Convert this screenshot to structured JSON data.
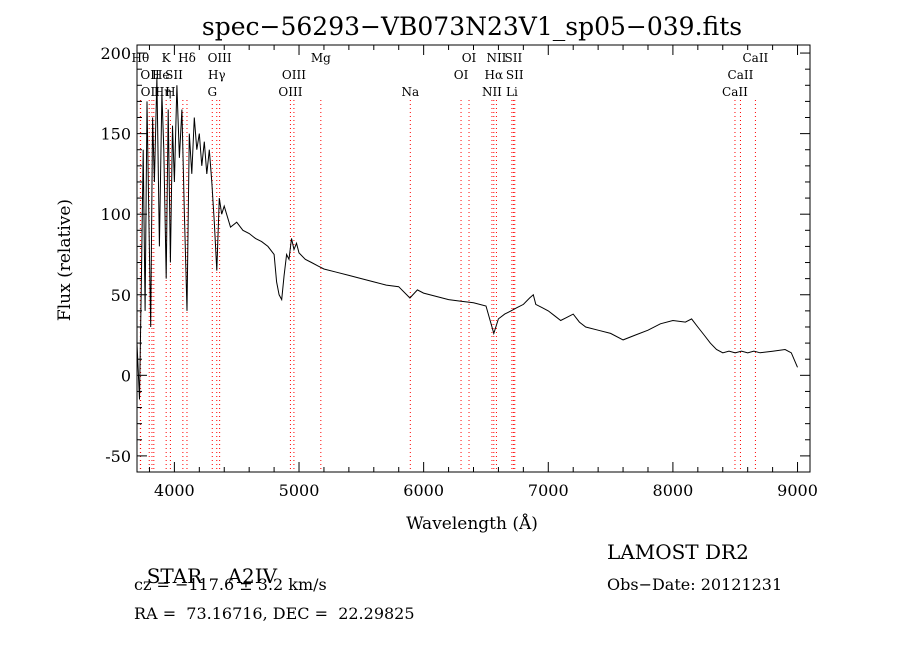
{
  "chart_data": {
    "type": "line",
    "title": "spec−56293−VB073N23V1_sp05−039.fits",
    "xlabel": "Wavelength (Å)",
    "ylabel": "Flux (relative)",
    "xlim": [
      3700,
      9100
    ],
    "ylim": [
      -60,
      205
    ],
    "xticks": [
      4000,
      5000,
      6000,
      7000,
      8000,
      9000
    ],
    "yticks": [
      -50,
      0,
      50,
      100,
      150,
      200
    ],
    "line_color": "#000000",
    "marker_color": "#ff0000",
    "grid": false,
    "series": [
      {
        "points": [
          [
            3700,
            20
          ],
          [
            3720,
            -15
          ],
          [
            3735,
            60
          ],
          [
            3750,
            140
          ],
          [
            3765,
            40
          ],
          [
            3780,
            170
          ],
          [
            3795,
            100
          ],
          [
            3810,
            30
          ],
          [
            3825,
            160
          ],
          [
            3840,
            120
          ],
          [
            3860,
            185
          ],
          [
            3880,
            80
          ],
          [
            3900,
            175
          ],
          [
            3915,
            140
          ],
          [
            3934,
            60
          ],
          [
            3950,
            165
          ],
          [
            3968,
            70
          ],
          [
            3985,
            155
          ],
          [
            4000,
            120
          ],
          [
            4020,
            180
          ],
          [
            4040,
            135
          ],
          [
            4060,
            165
          ],
          [
            4080,
            100
          ],
          [
            4101,
            40
          ],
          [
            4120,
            150
          ],
          [
            4140,
            125
          ],
          [
            4160,
            160
          ],
          [
            4180,
            140
          ],
          [
            4200,
            150
          ],
          [
            4220,
            130
          ],
          [
            4240,
            145
          ],
          [
            4260,
            125
          ],
          [
            4280,
            140
          ],
          [
            4300,
            120
          ],
          [
            4320,
            95
          ],
          [
            4340,
            65
          ],
          [
            4360,
            110
          ],
          [
            4380,
            100
          ],
          [
            4400,
            105
          ],
          [
            4450,
            92
          ],
          [
            4500,
            95
          ],
          [
            4550,
            90
          ],
          [
            4600,
            88
          ],
          [
            4650,
            85
          ],
          [
            4700,
            83
          ],
          [
            4750,
            80
          ],
          [
            4800,
            75
          ],
          [
            4820,
            58
          ],
          [
            4840,
            50
          ],
          [
            4861,
            47
          ],
          [
            4880,
            62
          ],
          [
            4900,
            75
          ],
          [
            4920,
            72
          ],
          [
            4940,
            85
          ],
          [
            4960,
            78
          ],
          [
            4980,
            82
          ],
          [
            5000,
            76
          ],
          [
            5050,
            72
          ],
          [
            5100,
            70
          ],
          [
            5150,
            68
          ],
          [
            5200,
            66
          ],
          [
            5300,
            64
          ],
          [
            5400,
            62
          ],
          [
            5500,
            60
          ],
          [
            5600,
            58
          ],
          [
            5700,
            56
          ],
          [
            5800,
            55
          ],
          [
            5890,
            48
          ],
          [
            5950,
            53
          ],
          [
            6000,
            51
          ],
          [
            6100,
            49
          ],
          [
            6200,
            47
          ],
          [
            6300,
            46
          ],
          [
            6400,
            45
          ],
          [
            6500,
            43
          ],
          [
            6563,
            26
          ],
          [
            6600,
            35
          ],
          [
            6650,
            38
          ],
          [
            6700,
            40
          ],
          [
            6750,
            42
          ],
          [
            6800,
            44
          ],
          [
            6850,
            48
          ],
          [
            6880,
            50
          ],
          [
            6900,
            44
          ],
          [
            6950,
            42
          ],
          [
            7000,
            40
          ],
          [
            7050,
            37
          ],
          [
            7100,
            34
          ],
          [
            7150,
            36
          ],
          [
            7200,
            38
          ],
          [
            7250,
            33
          ],
          [
            7300,
            30
          ],
          [
            7400,
            28
          ],
          [
            7500,
            26
          ],
          [
            7600,
            22
          ],
          [
            7700,
            25
          ],
          [
            7800,
            28
          ],
          [
            7900,
            32
          ],
          [
            8000,
            34
          ],
          [
            8100,
            33
          ],
          [
            8150,
            35
          ],
          [
            8200,
            30
          ],
          [
            8250,
            25
          ],
          [
            8300,
            20
          ],
          [
            8350,
            16
          ],
          [
            8400,
            14
          ],
          [
            8450,
            15
          ],
          [
            8500,
            14
          ],
          [
            8550,
            15
          ],
          [
            8600,
            14
          ],
          [
            8650,
            15
          ],
          [
            8700,
            14
          ],
          [
            8800,
            15
          ],
          [
            8900,
            16
          ],
          [
            8950,
            14
          ],
          [
            9000,
            5
          ]
        ]
      }
    ],
    "lines": [
      {
        "label": "Hθ",
        "x": 3798,
        "row": 0,
        "ha": "end"
      },
      {
        "label": "OII",
        "x": 3727,
        "row": 1,
        "ha": "start"
      },
      {
        "label": "OII",
        "x": 3729,
        "row": 2,
        "ha": "start"
      },
      {
        "label": "He",
        "x": 3820,
        "row": 1,
        "ha": "start"
      },
      {
        "label": "Hη",
        "x": 3835,
        "row": 2,
        "ha": "start"
      },
      {
        "label": "K",
        "x": 3934,
        "row": 0,
        "ha": "middle"
      },
      {
        "label": "SII",
        "x": 4068,
        "row": 1,
        "ha": "end"
      },
      {
        "label": "H",
        "x": 3968,
        "row": 2,
        "ha": "middle"
      },
      {
        "label": "Hδ",
        "x": 4101,
        "row": 0,
        "ha": "middle"
      },
      {
        "label": "OIII",
        "x": 4363,
        "row": 0,
        "ha": "middle"
      },
      {
        "label": "Hγ",
        "x": 4340,
        "row": 1,
        "ha": "middle"
      },
      {
        "label": "G",
        "x": 4304,
        "row": 2,
        "ha": "middle"
      },
      {
        "label": "OIII",
        "x": 4959,
        "row": 1,
        "ha": "middle"
      },
      {
        "label": "OIII",
        "x": 4931,
        "row": 2,
        "ha": "middle"
      },
      {
        "label": "Mg",
        "x": 5175,
        "row": 0,
        "ha": "middle"
      },
      {
        "label": "Na",
        "x": 5893,
        "row": 2,
        "ha": "middle"
      },
      {
        "label": "OI",
        "x": 6364,
        "row": 0,
        "ha": "middle"
      },
      {
        "label": "OI",
        "x": 6300,
        "row": 1,
        "ha": "middle"
      },
      {
        "label": "NII",
        "x": 6584,
        "row": 0,
        "ha": "middle"
      },
      {
        "label": "SII",
        "x": 6720,
        "row": 0,
        "ha": "middle"
      },
      {
        "label": "Hα",
        "x": 6563,
        "row": 1,
        "ha": "middle"
      },
      {
        "label": "SII",
        "x": 6731,
        "row": 1,
        "ha": "middle"
      },
      {
        "label": "NII",
        "x": 6548,
        "row": 2,
        "ha": "middle"
      },
      {
        "label": "Li",
        "x": 6708,
        "row": 2,
        "ha": "middle"
      },
      {
        "label": "CaII",
        "x": 8662,
        "row": 0,
        "ha": "middle"
      },
      {
        "label": "CaII",
        "x": 8542,
        "row": 1,
        "ha": "middle"
      },
      {
        "label": "CaII",
        "x": 8498,
        "row": 2,
        "ha": "middle"
      }
    ]
  },
  "info": {
    "type_label": "STAR",
    "subclass": "A2IV",
    "cz": "cz = −117.6 ± 3.2 km/s",
    "coords": "RA =  73.16716, DEC =  22.29825",
    "survey": "LAMOST DR2",
    "obs_date": "Obs−Date: 20121231"
  }
}
